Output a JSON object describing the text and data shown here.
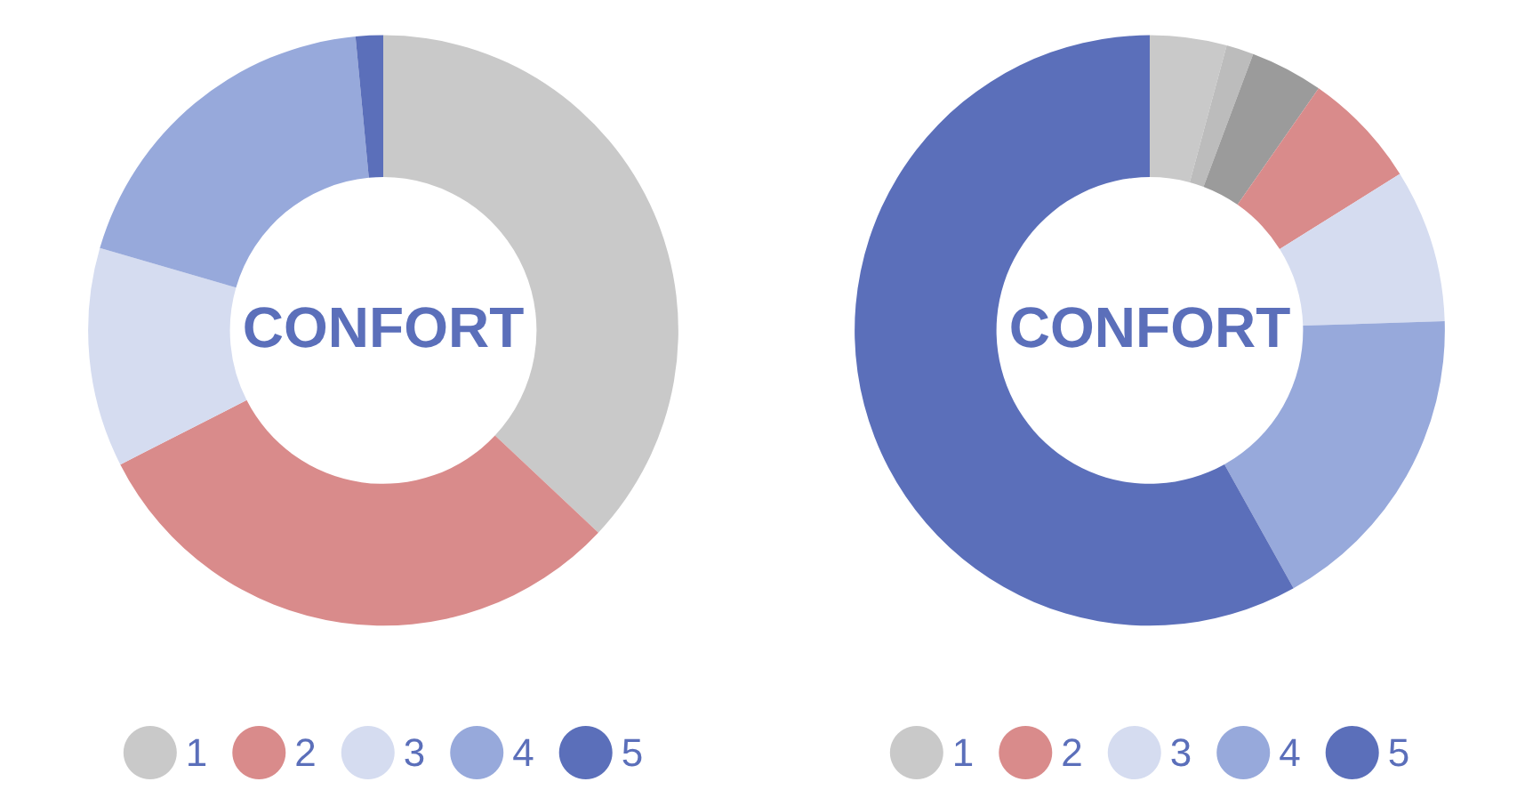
{
  "chart_data": [
    {
      "type": "donut",
      "title": "CONFORT",
      "categories": [
        "1",
        "2",
        "3",
        "4",
        "5"
      ],
      "values": [
        37,
        30.5,
        12,
        19,
        1.5
      ],
      "colors": [
        "#c9c9c9",
        "#d98b8b",
        "#d5dcf0",
        "#97a9db",
        "#5b6fba"
      ],
      "legend": "bottom"
    },
    {
      "type": "donut",
      "title": "CONFORT",
      "categories": [
        "1",
        null,
        null,
        "2",
        "3",
        "4",
        "5"
      ],
      "values": [
        4.2,
        1.5,
        4,
        6.4,
        8.4,
        17.4,
        58.1
      ],
      "colors": [
        "#c9c9c9",
        "#bcbcbc",
        "#9b9b9b",
        "#d98b8b",
        "#d5dcf0",
        "#97a9db",
        "#5b6fba"
      ],
      "legend": "bottom"
    }
  ]
}
